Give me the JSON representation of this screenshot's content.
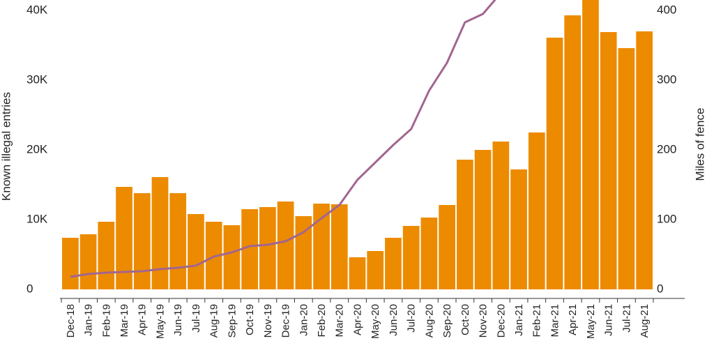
{
  "chart_data": {
    "type": "bar",
    "ylabel": "Known illegal entries",
    "y2label": "Miles of fence",
    "categories": [
      "Dec-18",
      "Jan-19",
      "Feb-19",
      "Mar-19",
      "Apr-19",
      "May-19",
      "Jun-19",
      "Jul-19",
      "Aug-19",
      "Sep-19",
      "Oct-19",
      "Nov-19",
      "Dec-19",
      "Jan-20",
      "Feb-20",
      "Mar-20",
      "Apr-20",
      "May-20",
      "Jun-20",
      "Jul-20",
      "Aug-20",
      "Sep-20",
      "Oct-20",
      "Nov-20",
      "Dec-20",
      "Jan-21",
      "Feb-21",
      "Mar-21",
      "Apr-21",
      "May-21",
      "Jun-21",
      "Jul-21",
      "Aug-21"
    ],
    "series": [
      {
        "name": "Known illegal entries",
        "type": "bar",
        "color": "#ec8b00",
        "values": [
          7400,
          7900,
          9700,
          14700,
          13800,
          16100,
          13800,
          10800,
          9700,
          9200,
          11500,
          11800,
          12600,
          10500,
          12300,
          12200,
          4600,
          5500,
          7400,
          9100,
          10300,
          12100,
          18600,
          20000,
          21200,
          17200,
          22500,
          36100,
          39300,
          42000,
          36900,
          34600,
          37000
        ]
      },
      {
        "name": "Miles of fence",
        "type": "line",
        "axis": "y2",
        "color": "#a2668f",
        "values": [
          18,
          22,
          24,
          25,
          26,
          29,
          31,
          34,
          47,
          53,
          62,
          64,
          69,
          82,
          102,
          121,
          157,
          182,
          207,
          230,
          285,
          325,
          383,
          395,
          425,
          null,
          null,
          null,
          null,
          null,
          null,
          null,
          null
        ]
      }
    ],
    "ylim": [
      0,
      41500
    ],
    "yticks": [
      0,
      {
        "value": 10000,
        "label": "10K"
      },
      {
        "value": 20000,
        "label": "20K"
      },
      {
        "value": 30000,
        "label": "30K"
      },
      {
        "value": 40000,
        "label": "40K"
      }
    ],
    "y2lim": [
      0,
      415
    ],
    "y2ticks": [
      0,
      100,
      200,
      300,
      400
    ],
    "grid": false
  }
}
